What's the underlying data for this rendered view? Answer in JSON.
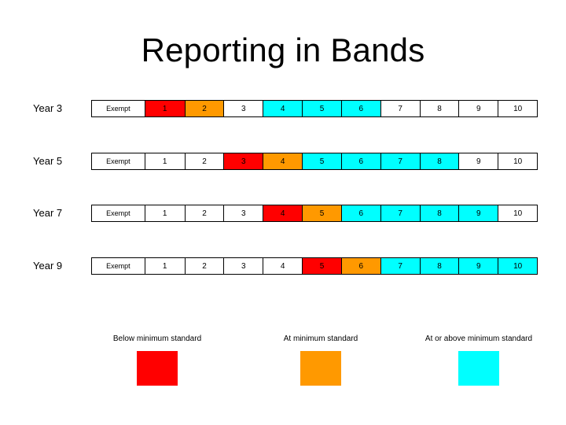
{
  "title": "Reporting in Bands",
  "exempt_label": "Exempt",
  "band_numbers": [
    "1",
    "2",
    "3",
    "4",
    "5",
    "6",
    "7",
    "8",
    "9",
    "10"
  ],
  "colors": {
    "below": "#ff0000",
    "at": "#ff9900",
    "above": "#00ffff",
    "none": "#ffffff"
  },
  "rows": [
    {
      "label": "Year 3",
      "statuses": [
        "below",
        "at",
        "none",
        "above",
        "above",
        "above",
        "none",
        "none",
        "none",
        "none"
      ]
    },
    {
      "label": "Year 5",
      "statuses": [
        "none",
        "none",
        "below",
        "at",
        "above",
        "above",
        "above",
        "above",
        "none",
        "none"
      ]
    },
    {
      "label": "Year 7",
      "statuses": [
        "none",
        "none",
        "none",
        "below",
        "at",
        "above",
        "above",
        "above",
        "above",
        "none"
      ]
    },
    {
      "label": "Year 9",
      "statuses": [
        "none",
        "none",
        "none",
        "none",
        "below",
        "at",
        "above",
        "above",
        "above",
        "above"
      ]
    }
  ],
  "legend": [
    {
      "label": "Below minimum standard",
      "status": "below"
    },
    {
      "label": "At minimum standard",
      "status": "at"
    },
    {
      "label": "At or above minimum standard",
      "status": "above"
    }
  ]
}
